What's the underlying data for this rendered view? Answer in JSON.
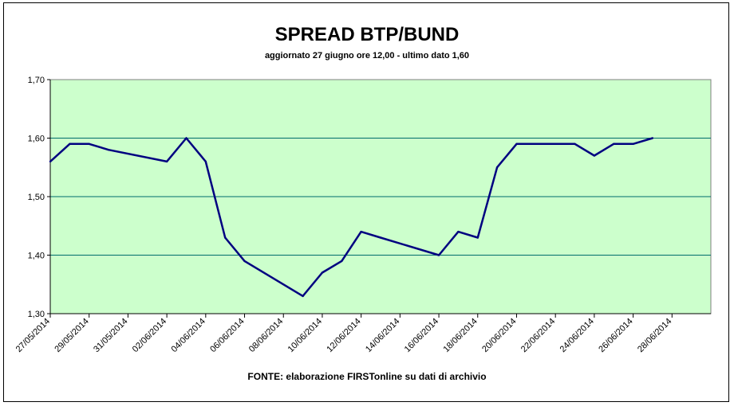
{
  "chart_data": {
    "type": "line",
    "title": "SPREAD BTP/BUND",
    "subtitle": "aggiornato 27 giugno ore 12,00 - ultimo dato 1,60",
    "source": "FONTE:  elaborazione FIRSTonline su dati di archivio",
    "xlabel": "",
    "ylabel": "",
    "ylim": [
      1.3,
      1.7
    ],
    "y_ticks": [
      "1,30",
      "1,40",
      "1,50",
      "1,60",
      "1,70"
    ],
    "x_tick_labels": [
      "27/05/2014",
      "29/05/2014",
      "31/05/2014",
      "02/06/2014",
      "04/06/2014",
      "06/06/2014",
      "08/06/2014",
      "10/06/2014",
      "12/06/2014",
      "14/06/2014",
      "16/06/2014",
      "18/06/2014",
      "20/06/2014",
      "22/06/2014",
      "24/06/2014",
      "26/06/2014",
      "28/06/2014"
    ],
    "grid": true,
    "legend": "none",
    "colors": {
      "line": "#000080",
      "plot_bg": "#ccffcc",
      "grid": "#006b6b"
    },
    "series": [
      {
        "x": [
          "27/05/2014",
          "28/05/2014",
          "29/05/2014",
          "30/05/2014",
          "02/06/2014",
          "03/06/2014",
          "04/06/2014",
          "05/06/2014",
          "06/06/2014",
          "09/06/2014",
          "10/06/2014",
          "11/06/2014",
          "12/06/2014",
          "13/06/2014",
          "16/06/2014",
          "17/06/2014",
          "18/06/2014",
          "19/06/2014",
          "20/06/2014",
          "23/06/2014",
          "24/06/2014",
          "25/06/2014",
          "26/06/2014",
          "27/06/2014"
        ],
        "values": [
          1.56,
          1.59,
          1.59,
          1.58,
          1.56,
          1.6,
          1.56,
          1.43,
          1.39,
          1.33,
          1.37,
          1.39,
          1.44,
          1.43,
          1.4,
          1.44,
          1.43,
          1.55,
          1.59,
          1.59,
          1.57,
          1.59,
          1.59,
          1.6
        ]
      }
    ]
  }
}
